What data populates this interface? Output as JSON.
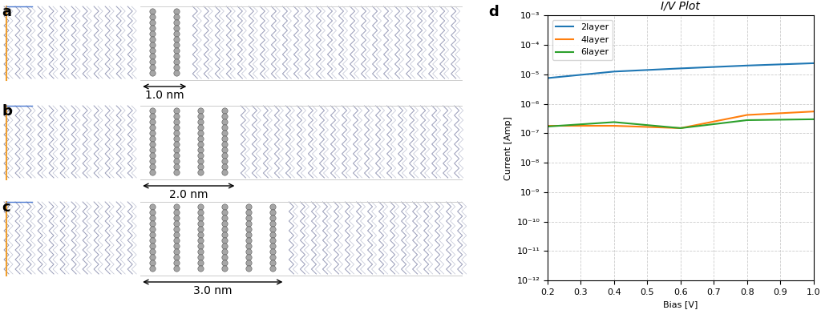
{
  "panels": [
    {
      "label": "a",
      "gap_label": "1.0 nm",
      "layers": 2
    },
    {
      "label": "b",
      "gap_label": "2.0 nm",
      "layers": 4
    },
    {
      "label": "c",
      "gap_label": "3.0 nm",
      "layers": 6
    }
  ],
  "chart_data": {
    "label": "d",
    "type": "line",
    "title": "I/V Plot",
    "x_label": "Bias [V]",
    "y_label": "Current [Amp]",
    "x": [
      0.2,
      0.4,
      0.6,
      0.8,
      1.0
    ],
    "series": [
      {
        "name": "2layer",
        "color": "#1f77b4",
        "values": [
          7.5e-06,
          1.25e-05,
          1.6e-05,
          2e-05,
          2.4e-05
        ]
      },
      {
        "name": "4layer",
        "color": "#ff7f0e",
        "values": [
          1.8e-07,
          1.8e-07,
          1.5e-07,
          4.2e-07,
          5.5e-07
        ]
      },
      {
        "name": "6layer",
        "color": "#2ca02c",
        "values": [
          1.7e-07,
          2.4e-07,
          1.5e-07,
          2.8e-07,
          3e-07
        ]
      }
    ],
    "xlim": [
      0.2,
      1.0
    ],
    "xticks": [
      0.2,
      0.3,
      0.4,
      0.5,
      0.6,
      0.7,
      0.8,
      0.9,
      1.0
    ],
    "ylim": [
      1e-12,
      0.001
    ],
    "yticks": [
      {
        "value": 1e-12,
        "label": "10⁻¹²"
      },
      {
        "value": 1e-11,
        "label": "10⁻¹¹"
      },
      {
        "value": 1e-10,
        "label": "10⁻¹⁰"
      },
      {
        "value": 1e-09,
        "label": "10⁻⁹"
      },
      {
        "value": 1e-08,
        "label": "10⁻⁸"
      },
      {
        "value": 1e-07,
        "label": "10⁻⁷"
      },
      {
        "value": 1e-06,
        "label": "10⁻⁶"
      },
      {
        "value": 1e-05,
        "label": "10⁻⁵"
      },
      {
        "value": 0.0001,
        "label": "10⁻⁴"
      },
      {
        "value": 0.001,
        "label": "10⁻³"
      }
    ],
    "log": "y",
    "grid": true,
    "legend": "upper left"
  }
}
